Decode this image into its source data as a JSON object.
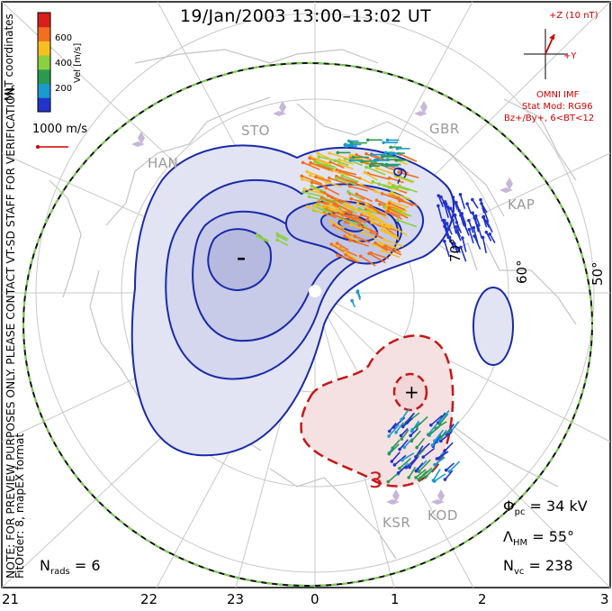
{
  "title": "19/Jan/2003 13:00–13:02 UT",
  "colorbar": {
    "label": "Vel [m/s]",
    "ticks": [
      "600",
      "400",
      "200"
    ],
    "colors": [
      "#d8201a",
      "#f07020",
      "#f4c020",
      "#8ad040",
      "#2a9a50",
      "#1a9ad0",
      "#2233cc"
    ]
  },
  "side_texts": {
    "coords": "MLT coordinates",
    "preview_note": "NOTE: FOR PREVIEW PURPOSES ONLY. PLEASE CONTACT VT-SD STAFF FOR VERIFICATION.",
    "fit_order": "FitOrder: 8, mapEX format"
  },
  "scale_vector": "1000 m/s",
  "imf": {
    "z_label": "+Z (10 nT)",
    "y_label": "+Y",
    "model_lines": [
      "OMNI IMF",
      "Stat Mod: RG96",
      "Bz+/By+, 6<BT<12"
    ]
  },
  "stations": [
    "HAN",
    "STO",
    "GBR",
    "KAP",
    "KSR",
    "KOD"
  ],
  "latitude_labels": [
    "70°",
    "60°",
    "50°"
  ],
  "contour_labels": {
    "neg_level": "-9",
    "pos_level": "3",
    "minimum": "–",
    "maximum": "+"
  },
  "stats": {
    "phi_pc": "= 34 kV",
    "lambda_hm": "= 55°",
    "n_vc": "= 238",
    "n_rads": "= 6"
  },
  "mlt_ticks": [
    "21",
    "22",
    "23",
    "0",
    "1",
    "2",
    "3"
  ]
}
